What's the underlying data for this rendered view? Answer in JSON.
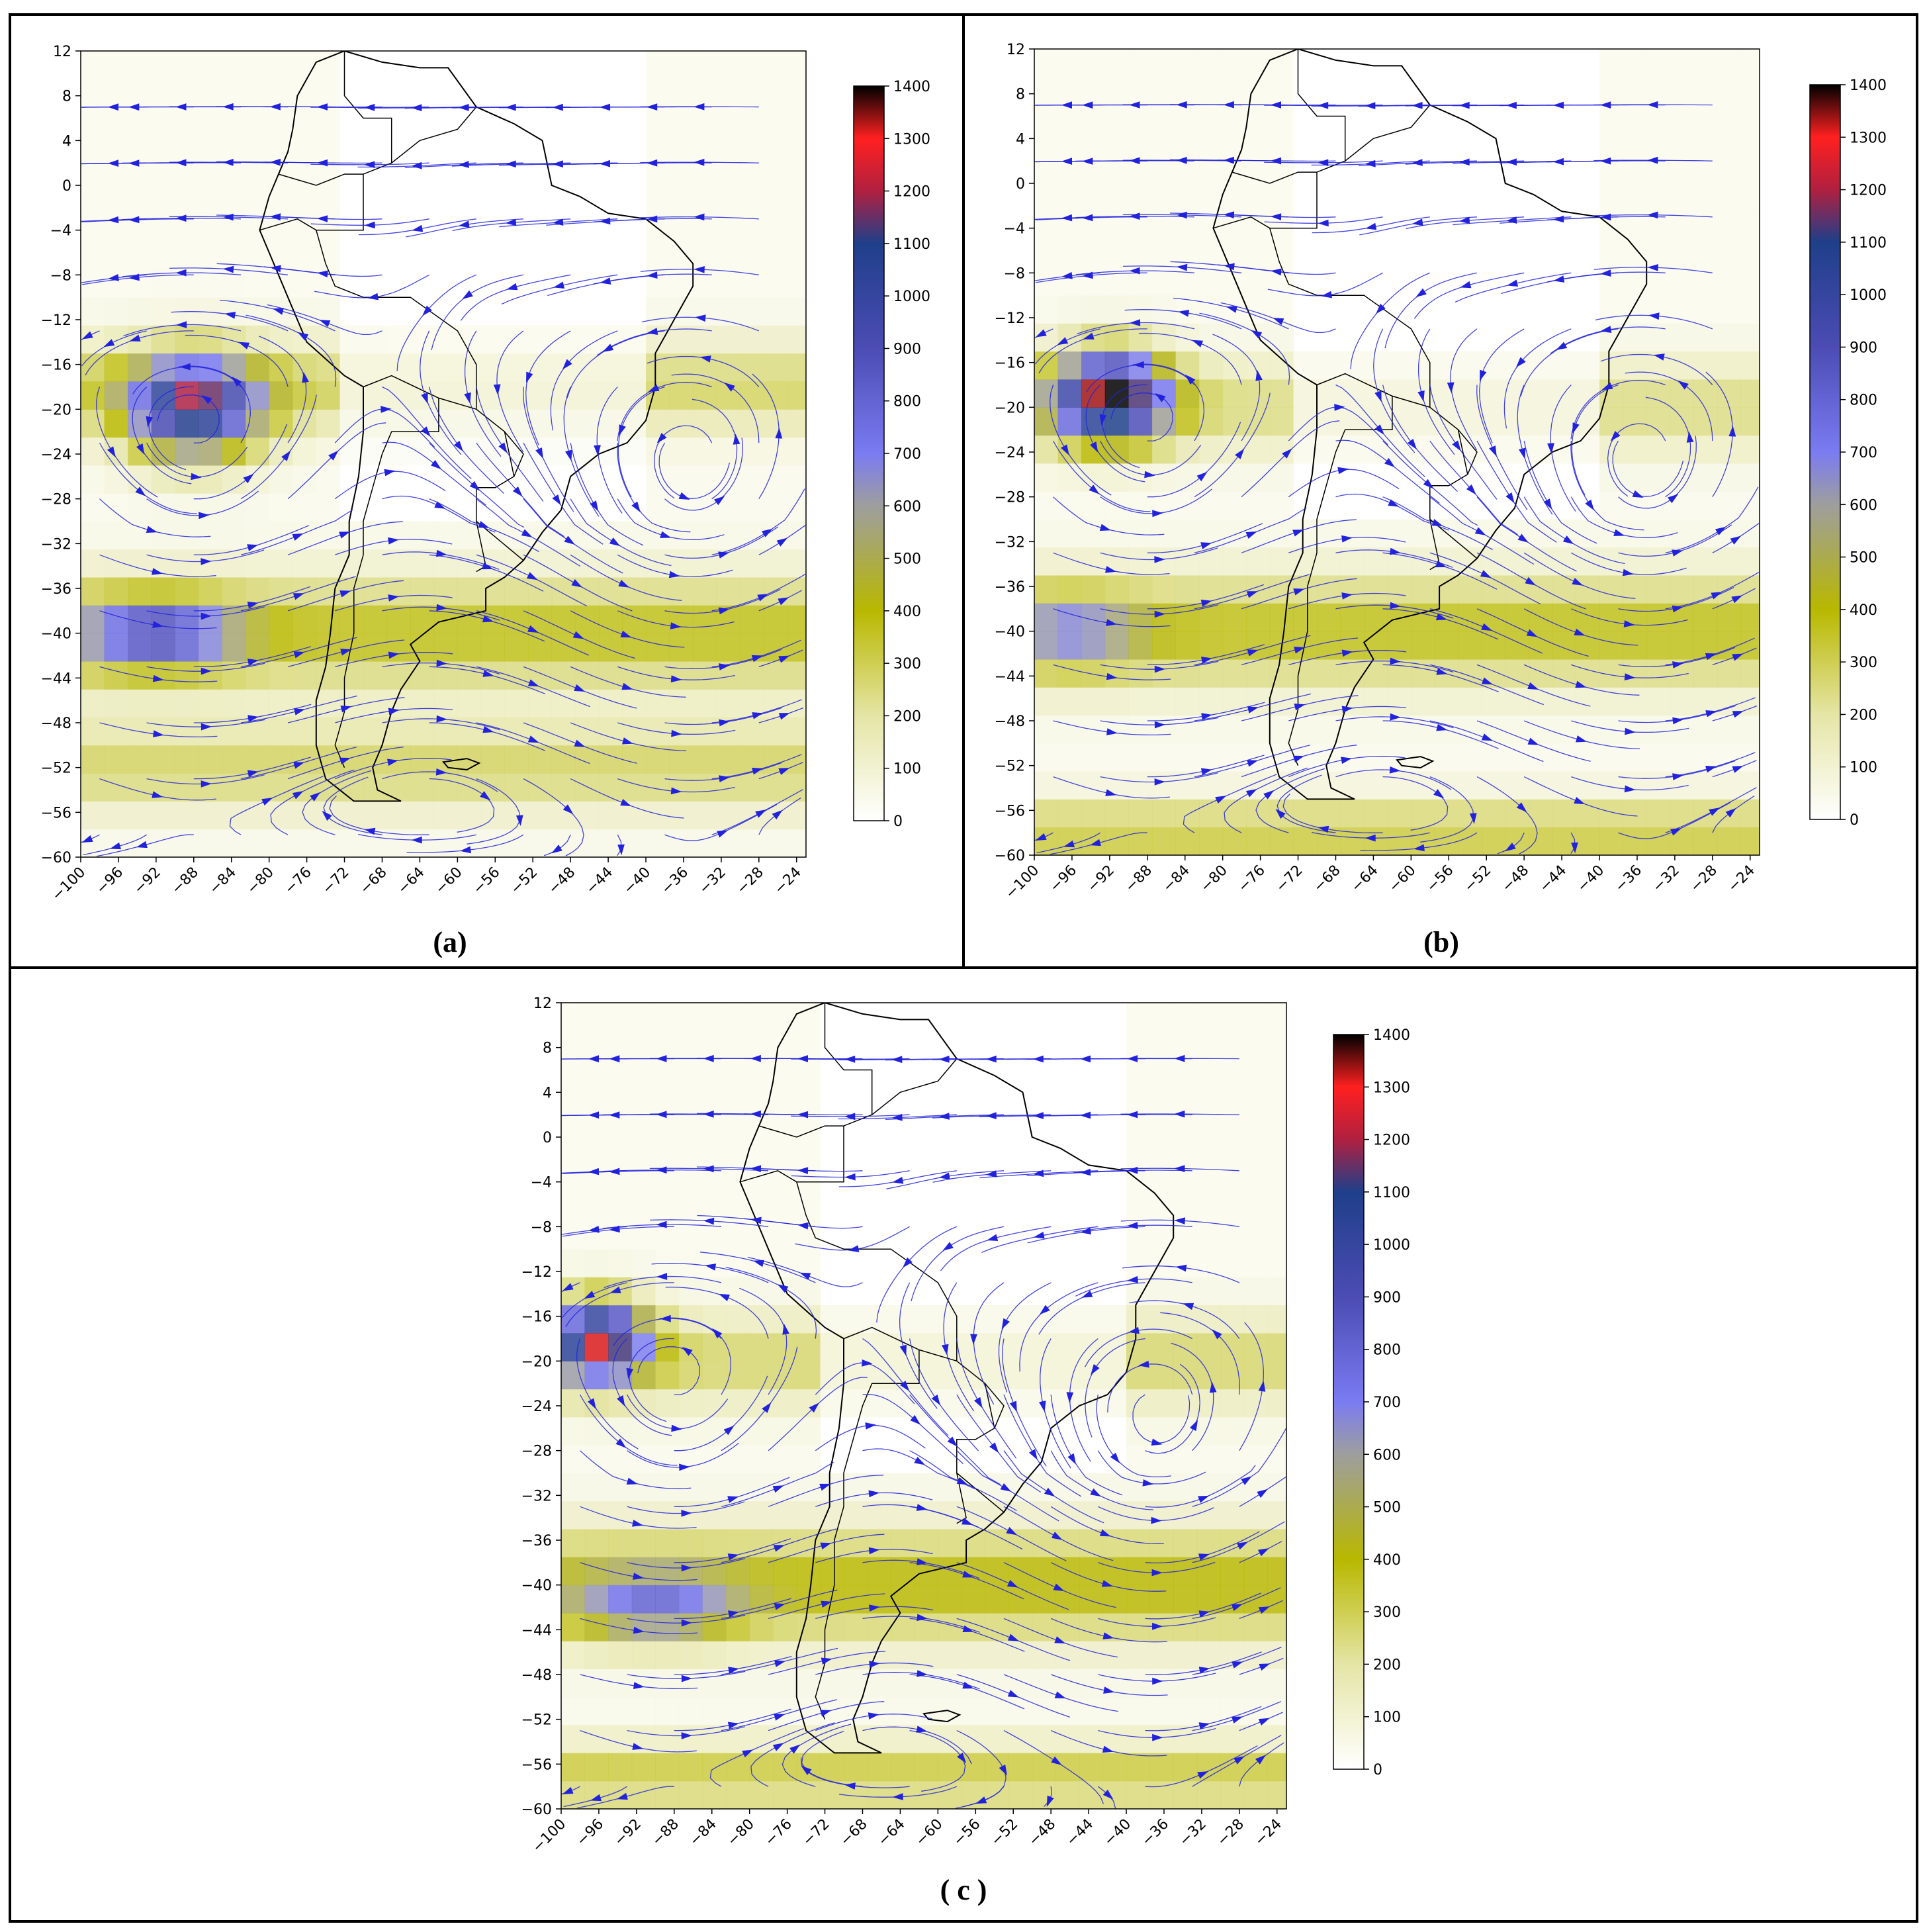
{
  "panels": [
    {
      "id": "a",
      "caption": "(a)",
      "hotspots": [
        {
          "lon": -88,
          "lat": -20,
          "peak": 1000,
          "spread_lon": 7,
          "spread_lat": 4.5
        },
        {
          "lon": -92,
          "lat": -40,
          "peak": 600,
          "spread_lon": 8,
          "spread_lat": 3
        }
      ],
      "bands": [
        {
          "lat": -40,
          "level": 350,
          "width": 5
        },
        {
          "lat": -52,
          "level": 250,
          "width": 4
        },
        {
          "lat": -18,
          "level": 250,
          "width": 4
        }
      ],
      "vortex": {
        "lon": -36,
        "lat": -31
      }
    },
    {
      "id": "b",
      "caption": "(b)",
      "hotspots": [
        {
          "lon": -92,
          "lat": -19,
          "peak": 1200,
          "spread_lon": 6,
          "spread_lat": 4
        },
        {
          "lon": -96,
          "lat": -40,
          "peak": 350,
          "spread_lon": 7,
          "spread_lat": 3
        }
      ],
      "bands": [
        {
          "lat": -40,
          "level": 350,
          "width": 5
        },
        {
          "lat": -58,
          "level": 300,
          "width": 3
        },
        {
          "lat": -20,
          "level": 220,
          "width": 4
        }
      ],
      "vortex": {
        "lon": -36,
        "lat": -31
      }
    },
    {
      "id": "c",
      "caption": "( c )",
      "hotspots": [
        {
          "lon": -96,
          "lat": -18,
          "peak": 1100,
          "spread_lon": 5,
          "spread_lat": 3.5
        },
        {
          "lon": -90,
          "lat": -42,
          "peak": 450,
          "spread_lon": 8,
          "spread_lat": 3
        }
      ],
      "bands": [
        {
          "lat": -40,
          "level": 380,
          "width": 5
        },
        {
          "lat": -57,
          "level": 300,
          "width": 3
        },
        {
          "lat": -20,
          "level": 250,
          "width": 4
        }
      ],
      "vortex": {
        "lon": -40,
        "lat": -32
      }
    }
  ],
  "axes": {
    "xticks": [
      -100,
      -96,
      -92,
      -88,
      -84,
      -80,
      -76,
      -72,
      -68,
      -64,
      -60,
      -56,
      -52,
      -48,
      -44,
      -40,
      -36,
      -32,
      -28,
      -24
    ],
    "yticks": [
      12,
      8,
      4,
      0,
      -4,
      -8,
      -12,
      -16,
      -20,
      -24,
      -28,
      -32,
      -36,
      -40,
      -44,
      -48,
      -52,
      -56,
      -60
    ],
    "xlim": [
      -100,
      -23
    ],
    "ylim": [
      -60,
      12
    ]
  },
  "colorbar": {
    "ticks": [
      0,
      100,
      200,
      300,
      400,
      500,
      600,
      700,
      800,
      900,
      1000,
      1100,
      1200,
      1300,
      1400
    ],
    "range": [
      0,
      1400
    ],
    "stops": [
      {
        "v": 0,
        "c": "#ffffff"
      },
      {
        "v": 200,
        "c": "#e5e5a6"
      },
      {
        "v": 400,
        "c": "#b8b800"
      },
      {
        "v": 600,
        "c": "#9e9e9e"
      },
      {
        "v": 700,
        "c": "#7b7bf2"
      },
      {
        "v": 900,
        "c": "#4c4cb4"
      },
      {
        "v": 1100,
        "c": "#1f3f8a"
      },
      {
        "v": 1200,
        "c": "#b02040"
      },
      {
        "v": 1300,
        "c": "#ff2020"
      },
      {
        "v": 1400,
        "c": "#000000"
      }
    ]
  },
  "colors": {
    "streamline": "#2222dd",
    "coastline": "#000000",
    "frame": "#000000"
  }
}
